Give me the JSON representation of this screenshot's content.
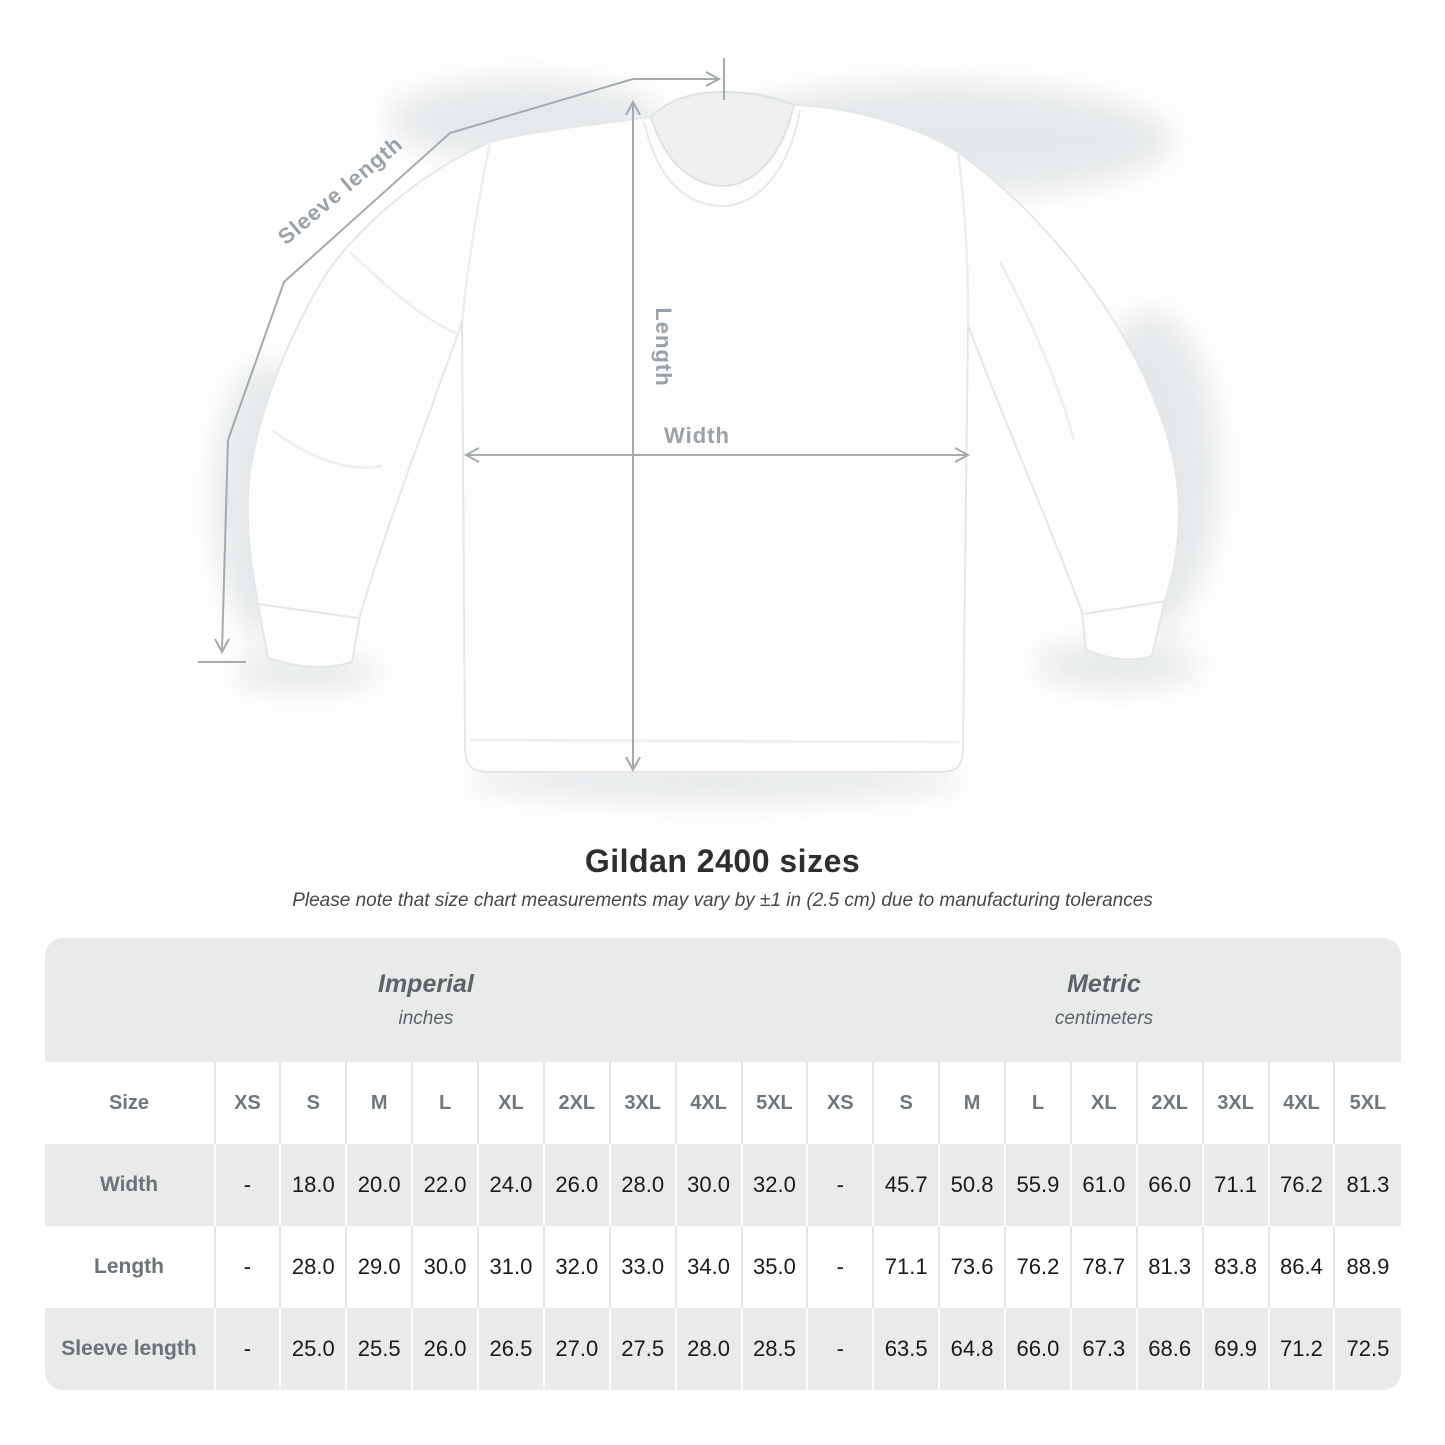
{
  "diagram": {
    "sleeve_length_label": "Sleeve length",
    "length_label": "Length",
    "width_label": "Width"
  },
  "heading": {
    "title": "Gildan 2400 sizes",
    "subtitle": "Please note that size chart measurements may vary by ±1 in (2.5 cm) due to manufacturing tolerances"
  },
  "size_table": {
    "size_header_label": "Size",
    "unit_groups": [
      {
        "name": "Imperial",
        "unit": "inches"
      },
      {
        "name": "Metric",
        "unit": "centimeters"
      }
    ],
    "sizes": [
      "XS",
      "S",
      "M",
      "L",
      "XL",
      "2XL",
      "3XL",
      "4XL",
      "5XL"
    ],
    "rows": [
      {
        "label": "Width",
        "imperial": [
          "-",
          "18.0",
          "20.0",
          "22.0",
          "24.0",
          "26.0",
          "28.0",
          "30.0",
          "32.0"
        ],
        "metric": [
          "-",
          "45.7",
          "50.8",
          "55.9",
          "61.0",
          "66.0",
          "71.1",
          "76.2",
          "81.3"
        ]
      },
      {
        "label": "Length",
        "imperial": [
          "-",
          "28.0",
          "29.0",
          "30.0",
          "31.0",
          "32.0",
          "33.0",
          "34.0",
          "35.0"
        ],
        "metric": [
          "-",
          "71.1",
          "73.6",
          "76.2",
          "78.7",
          "81.3",
          "83.8",
          "86.4",
          "88.9"
        ]
      },
      {
        "label": "Sleeve length",
        "imperial": [
          "-",
          "25.0",
          "25.5",
          "26.0",
          "26.5",
          "27.0",
          "27.5",
          "28.0",
          "28.5"
        ],
        "metric": [
          "-",
          "63.5",
          "64.8",
          "66.0",
          "67.3",
          "68.6",
          "69.9",
          "71.2",
          "72.5"
        ]
      }
    ]
  },
  "chart_data": {
    "type": "table",
    "title": "Gildan 2400 sizes",
    "columns": [
      "XS",
      "S",
      "M",
      "L",
      "XL",
      "2XL",
      "3XL",
      "4XL",
      "5XL"
    ],
    "series": [
      {
        "name": "Width (inches)",
        "values": [
          null,
          18.0,
          20.0,
          22.0,
          24.0,
          26.0,
          28.0,
          30.0,
          32.0
        ]
      },
      {
        "name": "Length (inches)",
        "values": [
          null,
          28.0,
          29.0,
          30.0,
          31.0,
          32.0,
          33.0,
          34.0,
          35.0
        ]
      },
      {
        "name": "Sleeve length (inches)",
        "values": [
          null,
          25.0,
          25.5,
          26.0,
          26.5,
          27.0,
          27.5,
          28.0,
          28.5
        ]
      },
      {
        "name": "Width (cm)",
        "values": [
          null,
          45.7,
          50.8,
          55.9,
          61.0,
          66.0,
          71.1,
          76.2,
          81.3
        ]
      },
      {
        "name": "Length (cm)",
        "values": [
          null,
          71.1,
          73.6,
          76.2,
          78.7,
          81.3,
          83.8,
          86.4,
          88.9
        ]
      },
      {
        "name": "Sleeve length (cm)",
        "values": [
          null,
          63.5,
          64.8,
          66.0,
          67.3,
          68.6,
          69.9,
          71.2,
          72.5
        ]
      }
    ]
  },
  "colors": {
    "card_gray": "#e9eaea",
    "row_white": "#ffffff",
    "arrow_gray": "#a5aaad",
    "diagram_label_gray": "#9aa2a8",
    "header_text_gray": "#6e777c",
    "value_text": "#1a1a1a"
  }
}
